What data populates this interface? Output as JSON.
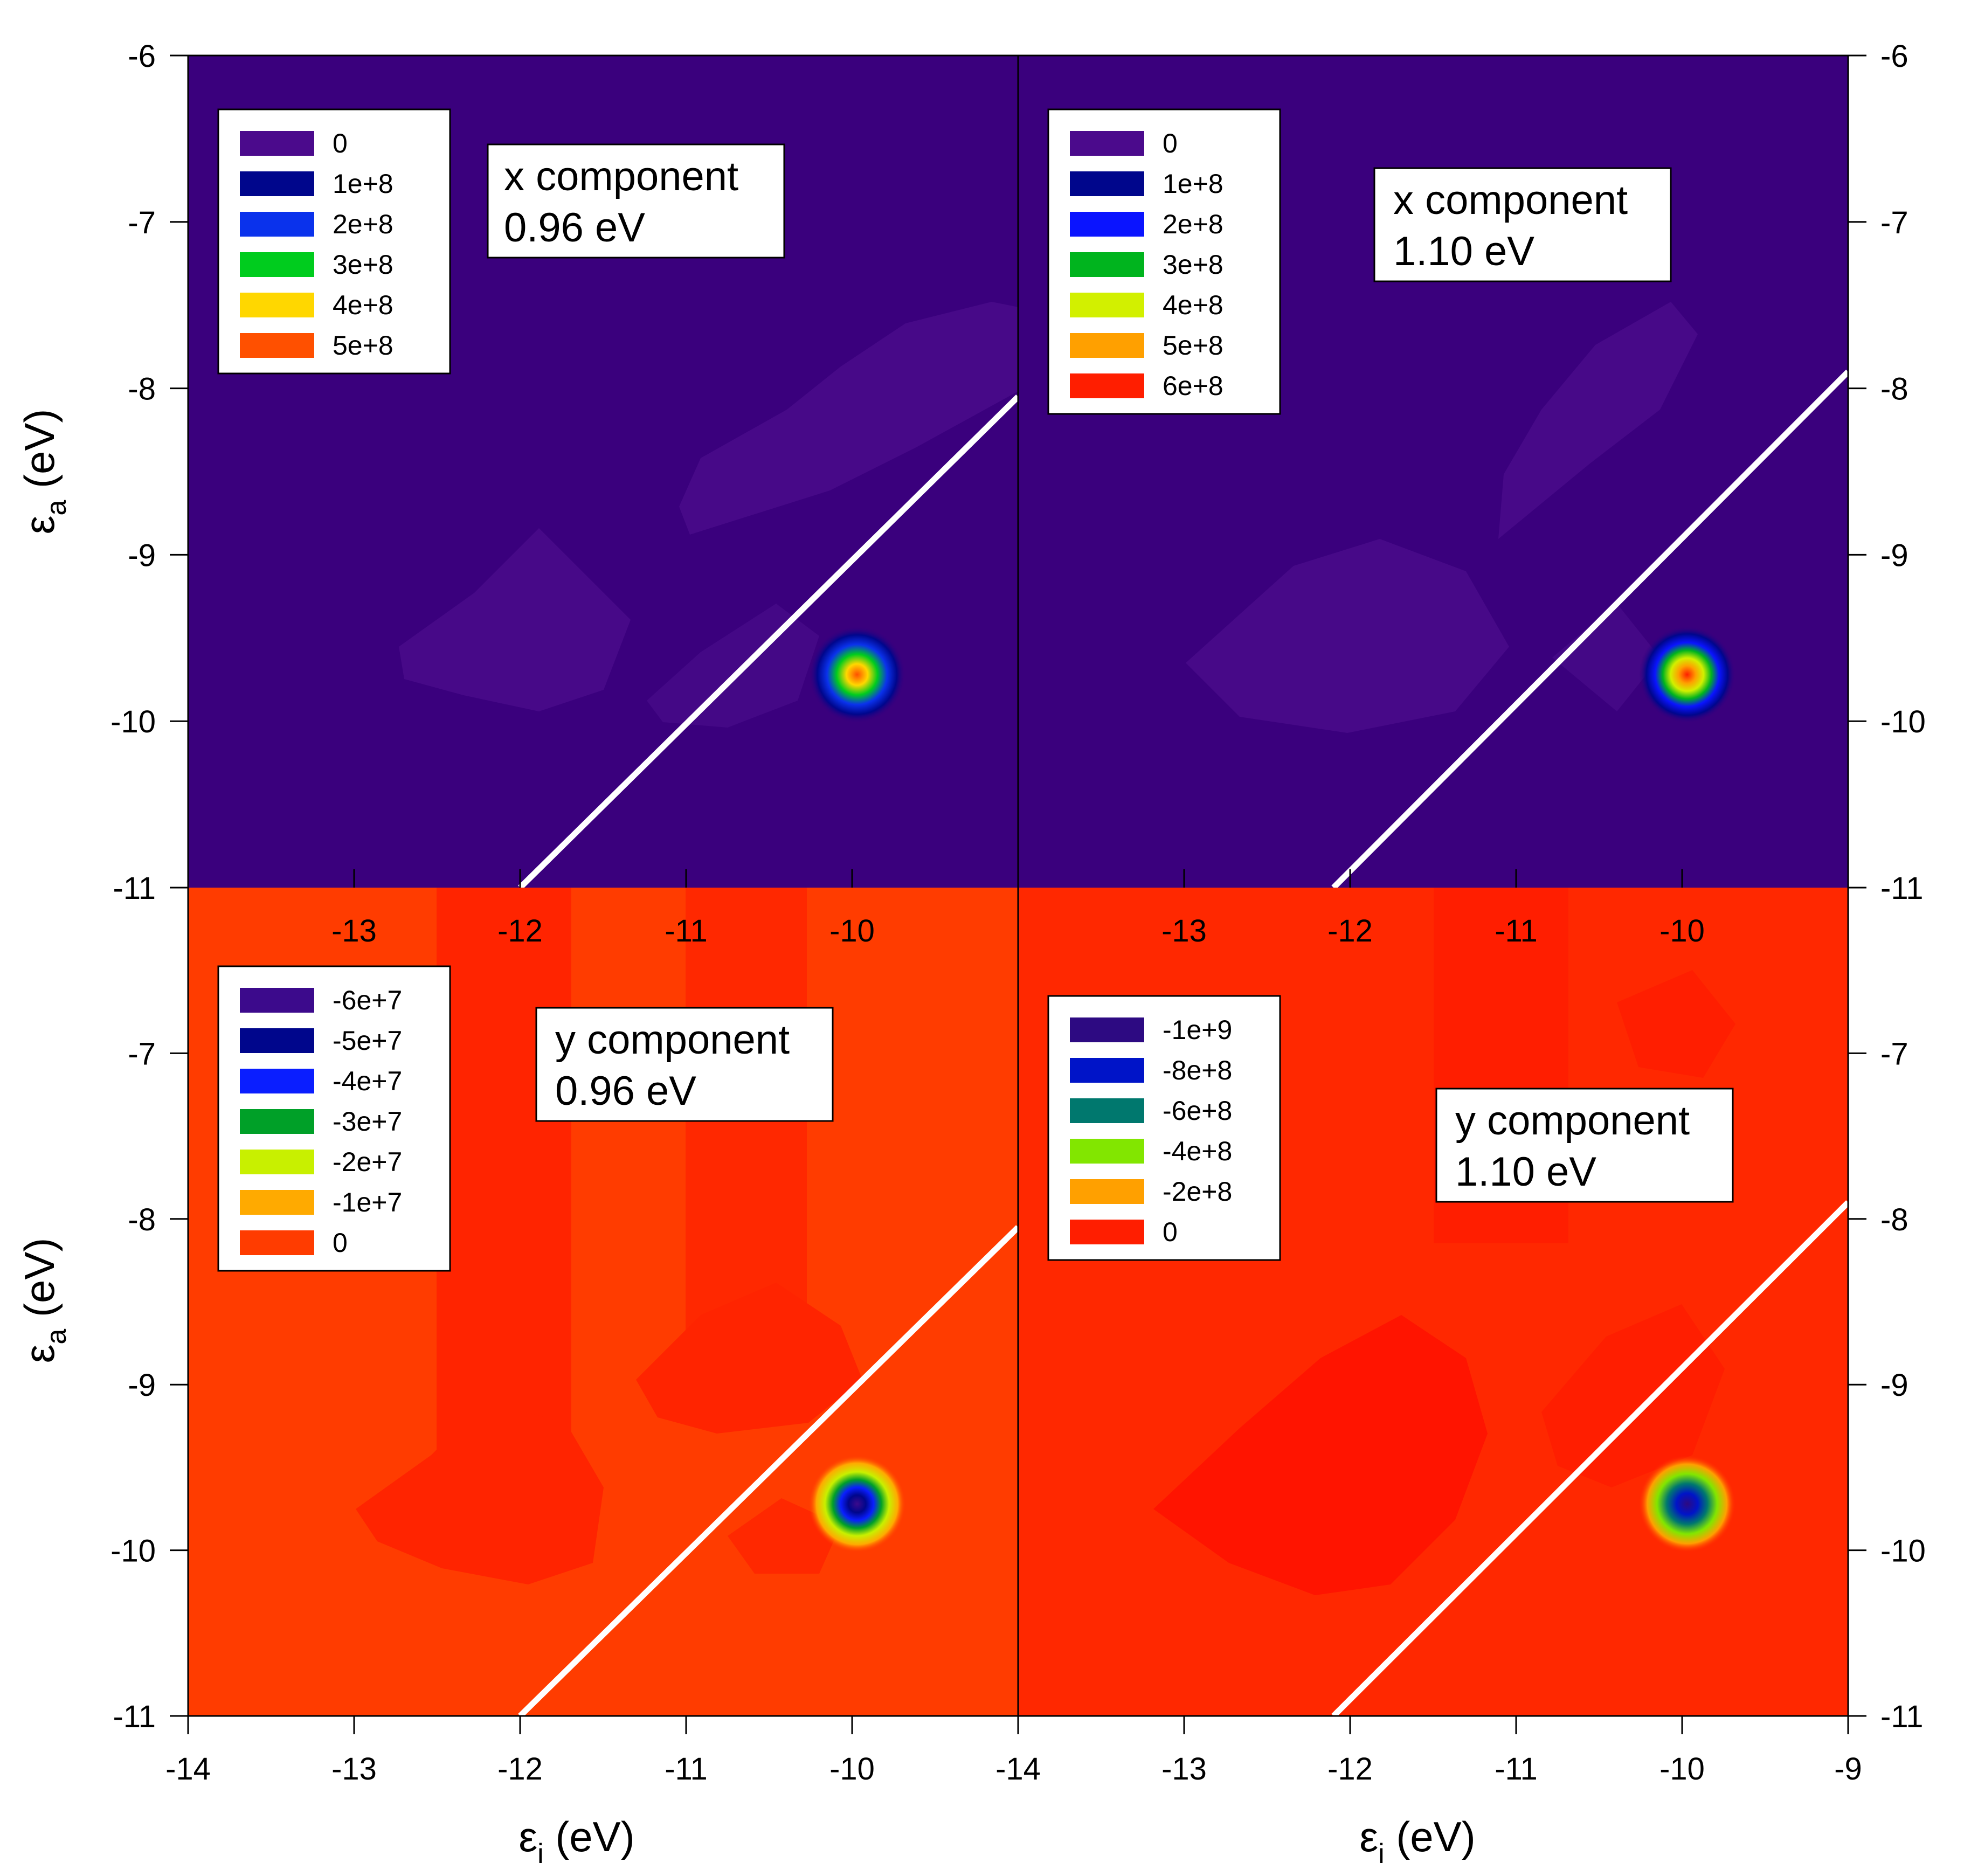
{
  "figure": {
    "xlabel_left": "εi (eV)",
    "xlabel_right": "εi (eV)",
    "ylabel_top": "εa (eV)",
    "ylabel_bottom": "εa (eV)"
  },
  "chart_data": [
    {
      "type": "heatmap",
      "id": "x096",
      "component": "x component",
      "energy": "0.96 eV",
      "title": "x component 0.96 eV",
      "xlim": [
        -14,
        -9
      ],
      "ylim": [
        -11,
        -6
      ],
      "xticks": [
        -13,
        -12,
        -11,
        -10
      ],
      "yticks": [
        -6,
        -7,
        -8,
        -9,
        -10,
        -11
      ],
      "xlabel": "εi (eV)",
      "ylabel": "εa (eV)",
      "background_color": "#3a007d",
      "legend": [
        {
          "label": "0",
          "color": "#4b0a8c"
        },
        {
          "label": "1e+8",
          "color": "#00068c"
        },
        {
          "label": "2e+8",
          "color": "#0a32ec"
        },
        {
          "label": "3e+8",
          "color": "#00cc1e"
        },
        {
          "label": "4e+8",
          "color": "#ffd700"
        },
        {
          "label": "5e+8",
          "color": "#ff5000"
        }
      ],
      "peak": {
        "x": -9.97,
        "y": -9.72,
        "value": 500000000.0
      },
      "diagonal_line": {
        "x1": -12.0,
        "y1": -11.0,
        "x2": -9.0,
        "y2": -8.05
      },
      "color_line": "#ffffff"
    },
    {
      "type": "heatmap",
      "id": "x110",
      "component": "x component",
      "energy": "1.10 eV",
      "title": "x component 1.10 eV",
      "xlim": [
        -14,
        -9
      ],
      "ylim": [
        -11,
        -6
      ],
      "xticks": [
        -13,
        -12,
        -11,
        -10
      ],
      "yticks": [
        -6,
        -7,
        -8,
        -9,
        -10,
        -11
      ],
      "xlabel": "εi (eV)",
      "ylabel": "εa (eV)",
      "background_color": "#3a007d",
      "legend": [
        {
          "label": "0",
          "color": "#4b0a8c"
        },
        {
          "label": "1e+8",
          "color": "#00068c"
        },
        {
          "label": "2e+8",
          "color": "#0a14ff"
        },
        {
          "label": "3e+8",
          "color": "#00b41e"
        },
        {
          "label": "4e+8",
          "color": "#d2f000"
        },
        {
          "label": "5e+8",
          "color": "#ffa000"
        },
        {
          "label": "6e+8",
          "color": "#ff1e00"
        }
      ],
      "peak": {
        "x": -9.97,
        "y": -9.72,
        "value": 600000000.0
      },
      "diagonal_line": {
        "x1": -12.1,
        "y1": -11.0,
        "x2": -9.0,
        "y2": -7.9
      },
      "color_line": "#ffffff"
    },
    {
      "type": "heatmap",
      "id": "y096",
      "component": "y component",
      "energy": "0.96 eV",
      "title": "y component 0.96 eV",
      "xlim": [
        -14,
        -9
      ],
      "ylim": [
        -11,
        -6
      ],
      "xticks": [
        -14,
        -13,
        -12,
        -11,
        -10
      ],
      "yticks": [
        -7,
        -8,
        -9,
        -10,
        -11
      ],
      "xlabel": "εi (eV)",
      "ylabel": "εa (eV)",
      "background_color": "#ff3c00",
      "legend": [
        {
          "label": "-6e+7",
          "color": "#3c0a8c"
        },
        {
          "label": "-5e+7",
          "color": "#00068c"
        },
        {
          "label": "-4e+7",
          "color": "#0a1eff"
        },
        {
          "label": "-3e+7",
          "color": "#00a028"
        },
        {
          "label": "-2e+7",
          "color": "#c8f000"
        },
        {
          "label": "-1e+7",
          "color": "#ffaa00"
        },
        {
          "label": "0",
          "color": "#ff3c00"
        }
      ],
      "peak": {
        "x": -9.97,
        "y": -9.72,
        "value": -60000000.0
      },
      "diagonal_line": {
        "x1": -12.0,
        "y1": -11.0,
        "x2": -9.0,
        "y2": -8.05
      },
      "color_line": "#ffffff"
    },
    {
      "type": "heatmap",
      "id": "y110",
      "component": "y component",
      "energy": "1.10 eV",
      "title": "y component 1.10 eV",
      "xlim": [
        -14,
        -9
      ],
      "ylim": [
        -11,
        -6
      ],
      "xticks": [
        -14,
        -13,
        -12,
        -11,
        -10,
        -9
      ],
      "yticks": [
        -7,
        -8,
        -9,
        -10,
        -11
      ],
      "xlabel": "εi (eV)",
      "ylabel": "εa (eV)",
      "background_color": "#ff2800",
      "legend": [
        {
          "label": "-1e+9",
          "color": "#2d0a82"
        },
        {
          "label": "-8e+8",
          "color": "#0014c8"
        },
        {
          "label": "-6e+8",
          "color": "#00786e"
        },
        {
          "label": "-4e+8",
          "color": "#82e600"
        },
        {
          "label": "-2e+8",
          "color": "#ffa000"
        },
        {
          "label": "0",
          "color": "#ff1e00"
        }
      ],
      "peak": {
        "x": -9.97,
        "y": -9.72,
        "value": -1000000000.0
      },
      "diagonal_line": {
        "x1": -12.1,
        "y1": -11.0,
        "x2": -9.0,
        "y2": -7.9
      },
      "color_line": "#ffffff"
    }
  ]
}
